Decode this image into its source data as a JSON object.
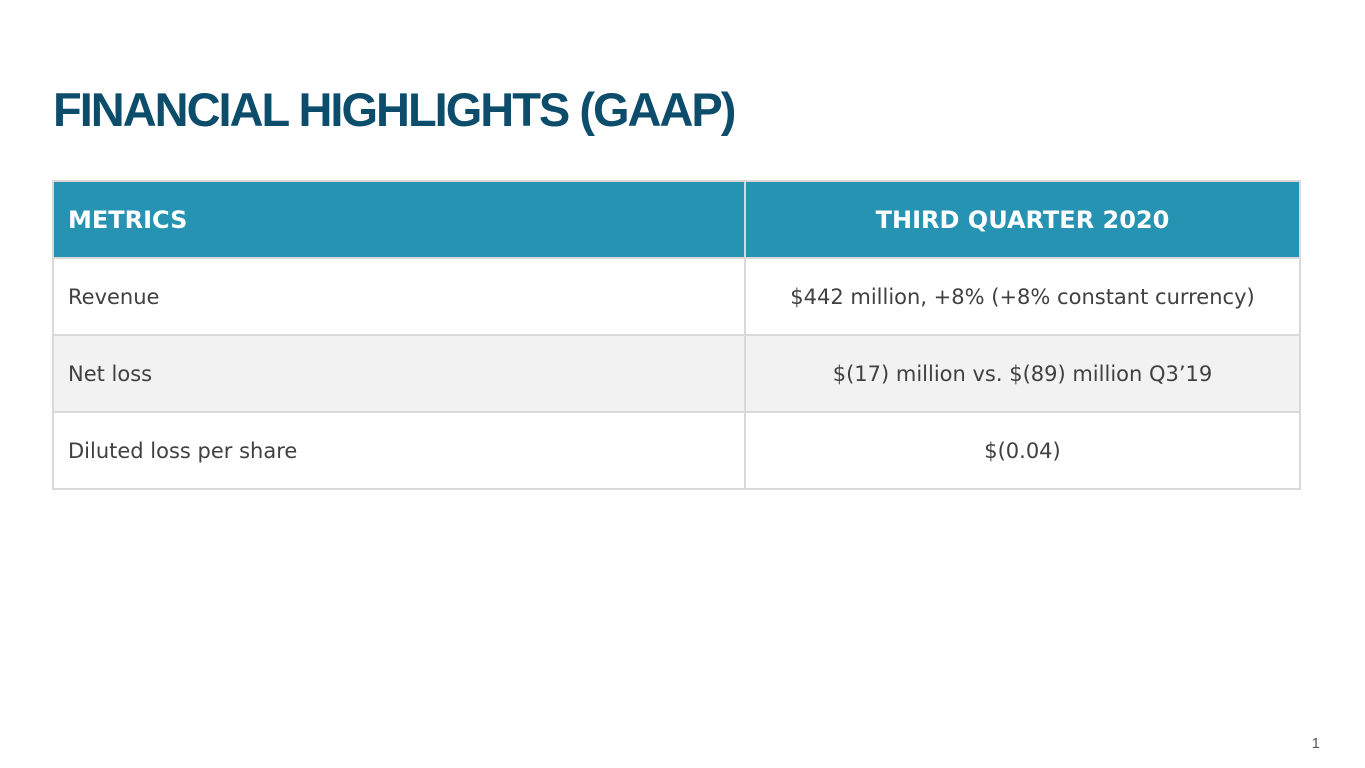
{
  "title": "FINANCIAL HIGHLIGHTS (GAAP)",
  "table": {
    "headers": [
      "METRICS",
      "THIRD QUARTER 2020"
    ],
    "rows": [
      {
        "metric": "Revenue",
        "value": "$442 million, +8% (+8% constant currency)"
      },
      {
        "metric": "Net loss",
        "value": "$(17) million vs. $(89) million Q3’19"
      },
      {
        "metric": "Diluted loss per share",
        "value": "$(0.04)"
      }
    ]
  },
  "page_number": "1",
  "colors": {
    "title": "#0c4d6b",
    "header_bg": "#2593b1",
    "row_alt_bg": "#f2f2f2",
    "border": "#d9d9d9"
  }
}
